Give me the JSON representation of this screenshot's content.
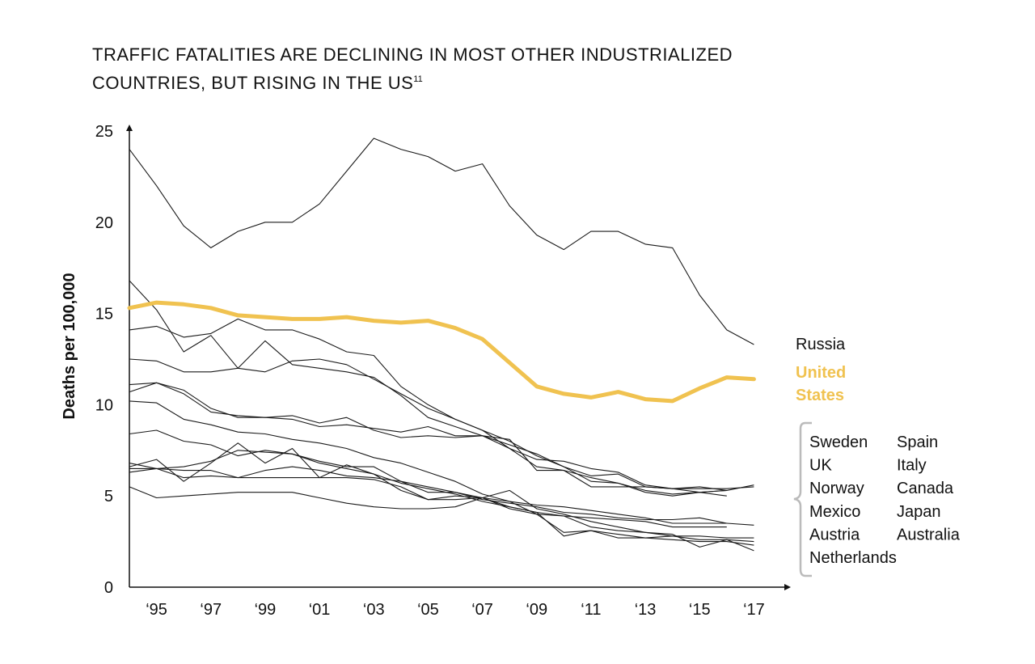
{
  "title": {
    "line1": "TRAFFIC FATALITIES ARE DECLINING IN MOST OTHER INDUSTRIALIZED",
    "line2": "COUNTRIES, BUT RISING IN THE US",
    "footnote": "11"
  },
  "chart_data": {
    "type": "line",
    "ylabel": "Deaths per 100,000",
    "ylim": [
      0,
      25
    ],
    "yticks": [
      0,
      5,
      10,
      15,
      20,
      25
    ],
    "xlim": [
      1994,
      2018
    ],
    "xticks": [
      1995,
      1997,
      1999,
      2001,
      2003,
      2005,
      2007,
      2009,
      2011,
      2013,
      2015,
      2017
    ],
    "xtick_labels": [
      "‘95",
      "‘97",
      "‘99",
      "‘01",
      "‘03",
      "‘05",
      "‘07",
      "‘09",
      "‘11",
      "‘13",
      "‘15",
      "‘17"
    ],
    "colors": {
      "highlight": "#f0c250",
      "lines": "#1a1a1a",
      "bracket": "#bbbbbb"
    },
    "highlighted_label": [
      "United",
      "States"
    ],
    "group_labels": [
      [
        "Sweden",
        "Spain"
      ],
      [
        "UK",
        "Italy"
      ],
      [
        "Norway",
        "Canada"
      ],
      [
        "Mexico",
        "Japan"
      ],
      [
        "Austria",
        "Australia"
      ],
      [
        "Netherlands"
      ]
    ],
    "series": [
      {
        "name": "Russia",
        "start": 1994,
        "values": [
          24.0,
          22.0,
          19.8,
          18.6,
          19.5,
          20.0,
          20.0,
          21.0,
          22.8,
          24.6,
          24.0,
          23.6,
          22.8,
          23.2,
          20.9,
          19.3,
          18.5,
          19.5,
          19.5,
          18.8,
          18.6,
          16.0,
          14.1,
          13.3
        ]
      },
      {
        "name": "United States",
        "start": 1994,
        "highlight": true,
        "values": [
          15.3,
          15.6,
          15.5,
          15.3,
          14.9,
          14.8,
          14.7,
          14.7,
          14.8,
          14.6,
          14.5,
          14.6,
          14.2,
          13.6,
          12.3,
          11.0,
          10.6,
          10.4,
          10.7,
          10.3,
          10.2,
          10.9,
          11.5,
          11.4
        ]
      },
      {
        "start": 1994,
        "values": [
          16.8,
          15.2,
          12.9,
          13.8,
          12.0,
          13.5,
          12.2,
          12.0,
          11.8,
          11.5,
          10.5,
          9.3,
          8.8,
          8.3,
          7.6,
          7.0,
          6.9,
          6.5,
          6.3,
          5.6,
          5.4,
          5.4,
          5.4,
          5.5
        ]
      },
      {
        "start": 1994,
        "values": [
          14.1,
          14.3,
          13.7,
          13.9,
          14.7,
          14.1,
          14.1,
          13.6,
          12.9,
          12.7,
          11.0,
          10.0,
          9.2,
          8.6,
          7.6,
          6.6,
          6.4,
          6.0,
          5.7,
          5.3,
          5.1,
          5.2,
          5.0
        ]
      },
      {
        "start": 1994,
        "values": [
          12.5,
          12.4,
          11.8,
          11.8,
          12.0,
          11.8,
          12.4,
          12.5,
          12.2,
          11.4,
          10.6,
          9.8,
          9.2,
          8.6,
          8.0,
          7.2,
          6.6,
          6.1,
          6.2,
          5.5,
          5.4,
          5.5,
          5.3
        ]
      },
      {
        "start": 1994,
        "values": [
          10.7,
          11.2,
          10.8,
          9.8,
          9.3,
          9.3,
          9.2,
          8.8,
          8.9,
          8.7,
          8.5,
          8.8,
          8.3,
          8.3,
          7.8,
          7.3,
          6.6,
          5.8,
          5.7,
          5.2,
          5.0,
          5.2,
          5.3
        ]
      },
      {
        "start": 1994,
        "values": [
          11.1,
          11.2,
          10.6,
          9.6,
          9.4,
          9.3,
          9.4,
          9.0,
          9.3,
          8.6,
          8.2,
          8.3,
          8.2,
          8.3,
          8.1,
          6.4,
          6.4,
          5.5,
          5.5,
          5.5,
          5.4,
          5.2,
          5.3,
          5.6
        ]
      },
      {
        "start": 1994,
        "values": [
          10.2,
          10.1,
          9.2,
          8.9,
          8.5,
          8.4,
          8.1,
          7.9,
          7.6,
          7.1,
          6.8,
          6.3,
          5.8,
          5.1,
          4.7,
          4.5,
          4.4,
          4.2,
          4.0,
          3.8,
          3.5,
          3.5,
          3.5,
          3.4
        ]
      },
      {
        "start": 1994,
        "values": [
          8.4,
          8.6,
          8.0,
          7.8,
          7.2,
          7.5,
          7.3,
          6.8,
          6.5,
          6.2,
          5.7,
          5.4,
          5.1,
          4.7,
          4.4,
          4.1,
          3.9,
          3.8,
          3.7,
          3.6,
          3.3,
          3.3,
          3.3
        ]
      },
      {
        "start": 1994,
        "values": [
          6.8,
          6.5,
          6.4,
          6.4,
          6.0,
          6.4,
          6.6,
          6.4,
          6.1,
          6.0,
          5.8,
          5.5,
          5.2,
          4.8,
          4.6,
          4.4,
          4.1,
          4.0,
          3.8,
          3.7,
          3.7,
          3.8,
          3.5
        ]
      },
      {
        "start": 1994,
        "values": [
          6.6,
          7.0,
          5.8,
          6.8,
          7.9,
          6.8,
          7.6,
          6.0,
          6.7,
          6.2,
          5.3,
          4.8,
          5.0,
          4.9,
          5.3,
          4.3,
          4.0,
          3.6,
          3.3,
          3.0,
          2.8,
          2.6,
          2.6,
          2.5
        ]
      },
      {
        "start": 1994,
        "values": [
          6.5,
          6.5,
          6.0,
          6.1,
          6.0,
          6.0,
          6.0,
          6.0,
          6.0,
          5.9,
          5.5,
          4.8,
          4.8,
          4.9,
          4.7,
          4.0,
          3.0,
          3.1,
          2.9,
          2.7,
          2.8,
          2.8,
          2.7,
          2.7
        ]
      },
      {
        "start": 1994,
        "values": [
          6.3,
          6.5,
          6.6,
          6.9,
          7.5,
          7.4,
          7.3,
          6.9,
          6.6,
          6.6,
          5.8,
          5.2,
          5.2,
          4.9,
          4.3,
          4.0,
          3.9,
          3.3,
          3.1,
          3.0,
          2.9,
          2.2,
          2.6,
          2.0
        ]
      },
      {
        "start": 1994,
        "values": [
          5.5,
          4.9,
          5.0,
          5.1,
          5.2,
          5.2,
          5.2,
          4.9,
          4.6,
          4.4,
          4.3,
          4.3,
          4.4,
          4.9,
          4.4,
          4.1,
          2.8,
          3.1,
          2.7,
          2.7,
          2.6,
          2.5,
          2.5,
          2.3
        ]
      }
    ]
  }
}
